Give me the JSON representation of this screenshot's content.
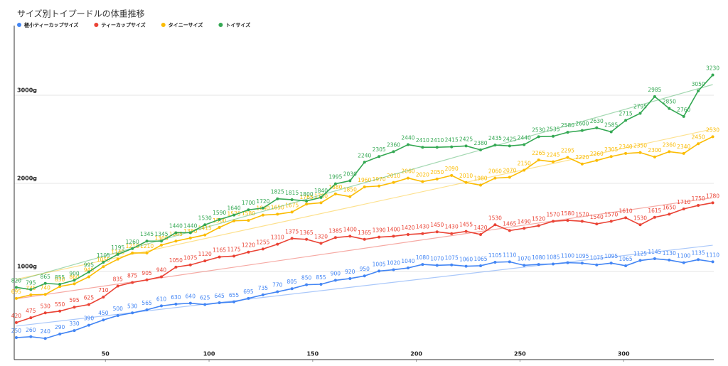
{
  "chart_data": {
    "type": "line",
    "title": "サイズ別トイプードルの体重推移",
    "legend": "top",
    "trendline": true,
    "grid": true,
    "x": [
      7,
      14,
      21,
      28,
      35,
      42,
      49,
      56,
      63,
      70,
      77,
      84,
      91,
      98,
      105,
      112,
      119,
      126,
      133,
      140,
      147,
      154,
      161,
      168,
      175,
      182,
      189,
      196,
      203,
      210,
      217,
      224,
      231,
      238,
      245,
      252,
      259,
      266,
      273,
      280,
      287,
      294,
      301,
      308,
      315,
      322,
      329,
      336,
      343
    ],
    "xlim": [
      6,
      343.5
    ],
    "xticks": [
      50,
      100,
      150,
      200,
      250,
      300
    ],
    "ylim": [
      0,
      3920
    ],
    "yticks": [
      {
        "value": 1000,
        "label": "1000g"
      },
      {
        "value": 2000,
        "label": "2000g"
      },
      {
        "value": 3000,
        "label": "3000g"
      }
    ],
    "series": [
      {
        "name": "極小ティーカップサイズ",
        "color": "#4285f4",
        "values": [
          250,
          260,
          240,
          290,
          330,
          390,
          450,
          500,
          530,
          565,
          610,
          630,
          640,
          625,
          645,
          655,
          695,
          735,
          770,
          805,
          850,
          855,
          900,
          920,
          950,
          1005,
          1020,
          1040,
          1080,
          1070,
          1075,
          1060,
          1065,
          1105,
          1110,
          1070,
          1080,
          1085,
          1100,
          1095,
          1075,
          1095,
          1065,
          1125,
          1145,
          1130,
          1100,
          1135,
          1110
        ]
      },
      {
        "name": "ティーカップサイズ",
        "color": "#ea4335",
        "values": [
          420,
          475,
          530,
          550,
          595,
          625,
          710,
          835,
          875,
          905,
          940,
          1050,
          1075,
          1120,
          1165,
          1175,
          1220,
          1255,
          1310,
          1375,
          1365,
          1320,
          1385,
          1400,
          1365,
          1390,
          1400,
          1420,
          1430,
          1450,
          1430,
          1455,
          1420,
          1530,
          1465,
          1490,
          1520,
          1570,
          1580,
          1570,
          1540,
          1570,
          1610,
          1530,
          1615,
          1650,
          1710,
          1750,
          1780
        ]
      },
      {
        "name": "タイニーサイズ",
        "color": "#fbbc04",
        "values": [
          695,
          735,
          740,
          830,
          860,
          940,
          1055,
          1140,
          1210,
          1210,
          1300,
          1345,
          1380,
          1415,
          1500,
          1575,
          1580,
          1640,
          1650,
          1675,
          1765,
          1780,
          1880,
          1850,
          1960,
          1970,
          2010,
          2060,
          2020,
          2050,
          2090,
          2010,
          1980,
          2060,
          2070,
          2150,
          2265,
          2245,
          2295,
          2220,
          2260,
          2305,
          2340,
          2350,
          2300,
          2360,
          2340,
          2450,
          2530
        ]
      },
      {
        "name": "トイサイズ",
        "color": "#34a853",
        "values": [
          820,
          795,
          865,
          855,
          900,
          995,
          1105,
          1195,
          1260,
          1345,
          1345,
          1440,
          1440,
          1530,
          1590,
          1640,
          1700,
          1720,
          1825,
          1815,
          1800,
          1840,
          1995,
          2030,
          2240,
          2305,
          2360,
          2440,
          2410,
          2410,
          2415,
          2425,
          2380,
          2435,
          2425,
          2440,
          2530,
          2535,
          2580,
          2600,
          2630,
          2585,
          2715,
          2795,
          2985,
          2850,
          2760,
          3050,
          3230
        ]
      }
    ]
  }
}
